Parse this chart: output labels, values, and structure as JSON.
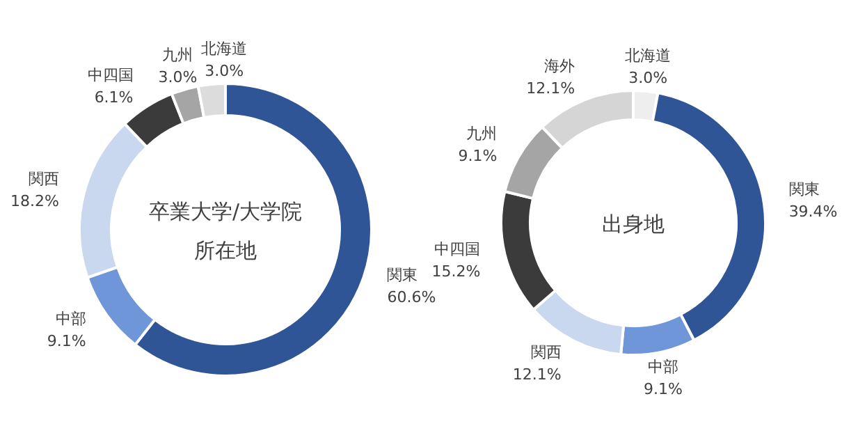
{
  "chart_data": [
    {
      "type": "donut",
      "title": "卒業大学/大学院所在地",
      "categories": [
        "関東",
        "中部",
        "関西",
        "中四国",
        "九州",
        "北海道"
      ],
      "values": [
        60.6,
        9.1,
        18.2,
        6.1,
        3.0,
        3.0
      ],
      "value_labels": [
        "60.6%",
        "9.1%",
        "18.2%",
        "6.1%",
        "3.0%",
        "3.0%"
      ],
      "colors": [
        "#2f5597",
        "#6f96d8",
        "#c9d8ef",
        "#3b3b3b",
        "#a5a5a5",
        "#dcdcdc"
      ]
    },
    {
      "type": "donut",
      "title": "出身地",
      "categories": [
        "北海道",
        "関東",
        "中部",
        "関西",
        "中四国",
        "九州",
        "海外"
      ],
      "values": [
        3.0,
        39.4,
        9.1,
        12.1,
        15.2,
        9.1,
        12.1
      ],
      "value_labels": [
        "3.0%",
        "39.4%",
        "9.1%",
        "12.1%",
        "15.2%",
        "9.1%",
        "12.1%"
      ],
      "colors": [
        "#eeeeee",
        "#2f5597",
        "#6f96d8",
        "#c9d8ef",
        "#3b3b3b",
        "#a5a5a5",
        "#d5d5d5"
      ]
    }
  ]
}
